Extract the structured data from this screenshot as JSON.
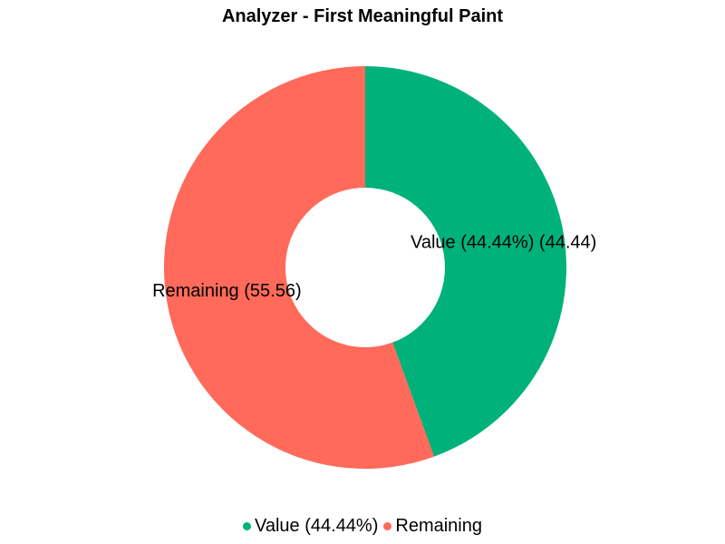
{
  "chart_data": {
    "type": "pie",
    "title": "Analyzer - First Meaningful Paint",
    "donut": true,
    "slices": [
      {
        "label": "Value (44.44%)",
        "value": 44.44,
        "color": "#00b27a",
        "slice_label": "Value (44.44%) (44.44)"
      },
      {
        "label": "Remaining",
        "value": 55.56,
        "color": "#ff6a5a",
        "slice_label": "Remaining (55.56)"
      }
    ],
    "legend": {
      "position": "bottom",
      "entries": [
        "Value (44.44%)",
        "Remaining"
      ]
    }
  }
}
